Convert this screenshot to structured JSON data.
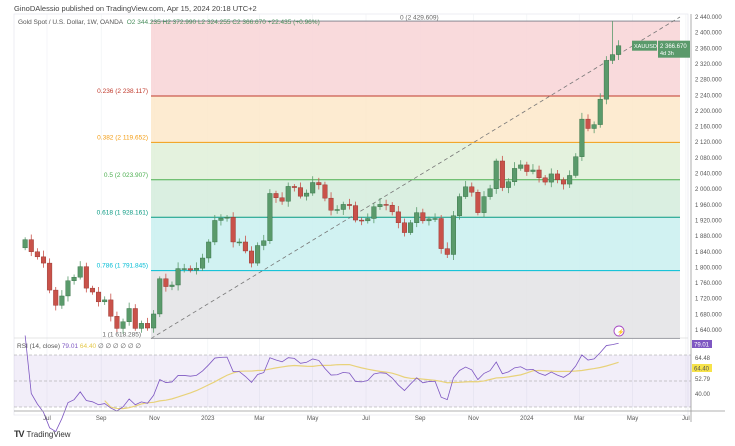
{
  "header": {
    "published": "GinoDAlessio published on TradingView.com, Apr 15, 2024 20:18 UTC+2"
  },
  "legend": {
    "symbol": "Gold Spot / U.S. Dollar, 1W, OANDA",
    "ohlc": "O2 344.235 H2 372.990 L2 324.255 C2 366.670 +22.435 (+0.96%)"
  },
  "colors": {
    "up": "#5a9a6b",
    "down": "#c9524a",
    "rsi": "#7e57c2",
    "rsi_ma": "#e8d27a"
  },
  "price_tag": {
    "symbol": "XAUUSD",
    "price": "2 366.670",
    "countdown": "4d 3h"
  },
  "fib": [
    {
      "ratio": 0,
      "price": 2429.609,
      "label": "0 (2 429.609)",
      "line": "#787b86",
      "fill": "#f8d3d6"
    },
    {
      "ratio": 0.236,
      "price": 2238.117,
      "label": "0.236 (2 238.117)",
      "line": "#c0392b",
      "fill": "#fde7c9"
    },
    {
      "ratio": 0.382,
      "price": 2119.652,
      "label": "0.382 (2 119.652)",
      "line": "#f39c12",
      "fill": "#dff0d8"
    },
    {
      "ratio": 0.5,
      "price": 2023.907,
      "label": "0.5 (2 023.907)",
      "line": "#4caf50",
      "fill": "#d3ecdc"
    },
    {
      "ratio": 0.618,
      "price": 1928.161,
      "label": "0.618 (1 928.161)",
      "line": "#089981",
      "fill": "#c9f0f0"
    },
    {
      "ratio": 0.786,
      "price": 1791.845,
      "label": "0.786 (1 791.845)",
      "line": "#00bcd4",
      "fill": "#e3e3e5"
    },
    {
      "ratio": 1,
      "price": 1618.285,
      "label": "1 (1 618.285)",
      "line": "#787b86",
      "fill": null
    }
  ],
  "price_axis": [
    "2 440.000",
    "2 400.000",
    "2 360.000",
    "2 320.000",
    "2 280.000",
    "2 240.000",
    "2 200.000",
    "2 160.000",
    "2 120.000",
    "2 080.000",
    "2 040.000",
    "2 000.000",
    "1 960.000",
    "1 920.000",
    "1 880.000",
    "1 840.000",
    "1 800.000",
    "1 760.000",
    "1 720.000",
    "1 680.000",
    "1 640.000"
  ],
  "time_axis": [
    {
      "label": "Jul",
      "date": "2022-07-01"
    },
    {
      "label": "Sep",
      "date": "2022-09-01"
    },
    {
      "label": "Nov",
      "date": "2022-11-01"
    },
    {
      "label": "2023",
      "date": "2023-01-01"
    },
    {
      "label": "Mar",
      "date": "2023-03-01"
    },
    {
      "label": "May",
      "date": "2023-05-01"
    },
    {
      "label": "Jul",
      "date": "2023-07-01"
    },
    {
      "label": "Sep",
      "date": "2023-09-01"
    },
    {
      "label": "Nov",
      "date": "2023-11-01"
    },
    {
      "label": "2024",
      "date": "2024-01-01"
    },
    {
      "label": "Mar",
      "date": "2024-03-01"
    },
    {
      "label": "May",
      "date": "2024-05-01"
    },
    {
      "label": "Jul",
      "date": "2024-07-01"
    }
  ],
  "rsi": {
    "legend": "RSI (14, close)",
    "value": "79.01",
    "ma_value": "64.40",
    "extra": "∅ ∅ ∅ ∅ ∅ ∅",
    "axis": [
      "64.48",
      "52.79",
      "40.00"
    ],
    "levels": [
      70,
      50,
      30
    ]
  },
  "chart_data": {
    "type": "candlestick",
    "first_week": "2022-06-06",
    "first_open": 1850,
    "closes": [
      1871,
      1840,
      1827,
      1811,
      1742,
      1703,
      1727,
      1766,
      1775,
      1802,
      1747,
      1737,
      1712,
      1717,
      1675,
      1644,
      1661,
      1695,
      1644,
      1657,
      1645,
      1681,
      1771,
      1751,
      1755,
      1797,
      1797,
      1793,
      1798,
      1824,
      1865,
      1920,
      1926,
      1928,
      1865,
      1865,
      1842,
      1811,
      1856,
      1868,
      1989,
      1978,
      1969,
      2007,
      2004,
      1982,
      1990,
      2017,
      2011,
      1977,
      1946,
      1948,
      1961,
      1958,
      1921,
      1919,
      1925,
      1955,
      1961,
      1959,
      1942,
      1914,
      1889,
      1914,
      1940,
      1919,
      1924,
      1925,
      1848,
      1833,
      1932,
      1981,
      2006,
      1992,
      1940,
      1981,
      2001,
      2072,
      2004,
      2019,
      2053,
      2062,
      2045,
      2049,
      2029,
      2018,
      2039,
      2024,
      2013,
      2035,
      2083,
      2179,
      2155,
      2165,
      2230,
      2329,
      2344,
      2366.67
    ],
    "last_high": 2429.609,
    "ylim": [
      1600,
      2450
    ]
  },
  "footer": {
    "brand": "TradingView"
  }
}
